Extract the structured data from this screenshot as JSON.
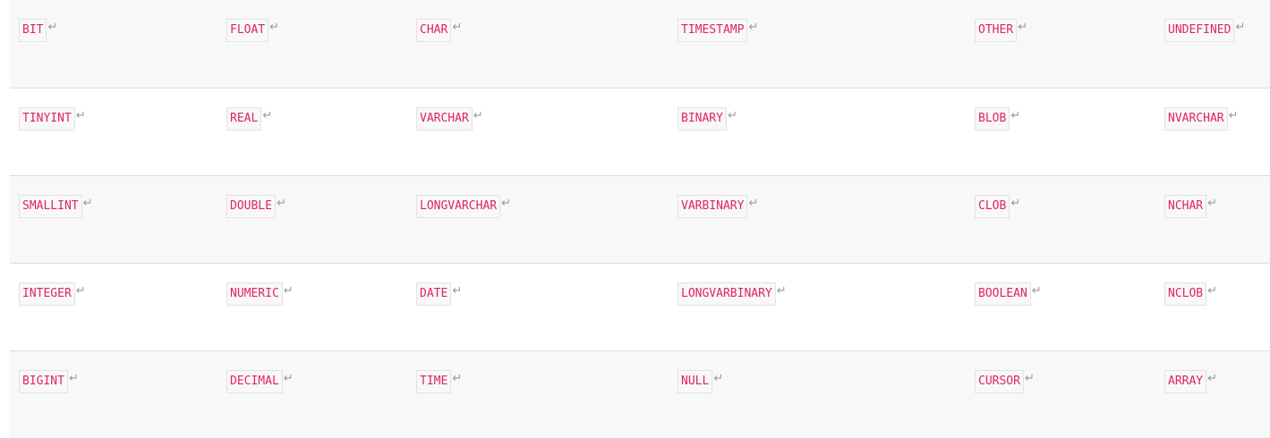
{
  "return_glyph": "↵",
  "colors": {
    "code_text": "#e0245e",
    "code_bg": "#f8f8fa",
    "row_alt_bg": "#f8f8f9"
  },
  "rows": [
    [
      "BIT",
      "FLOAT",
      "CHAR",
      "TIMESTAMP",
      "OTHER",
      "UNDEFINED"
    ],
    [
      "TINYINT",
      "REAL",
      "VARCHAR",
      "BINARY",
      "BLOB",
      "NVARCHAR"
    ],
    [
      "SMALLINT",
      "DOUBLE",
      "LONGVARCHAR",
      "VARBINARY",
      "CLOB",
      "NCHAR"
    ],
    [
      "INTEGER",
      "NUMERIC",
      "DATE",
      "LONGVARBINARY",
      "BOOLEAN",
      "NCLOB"
    ],
    [
      "BIGINT",
      "DECIMAL",
      "TIME",
      "NULL",
      "CURSOR",
      "ARRAY"
    ]
  ]
}
